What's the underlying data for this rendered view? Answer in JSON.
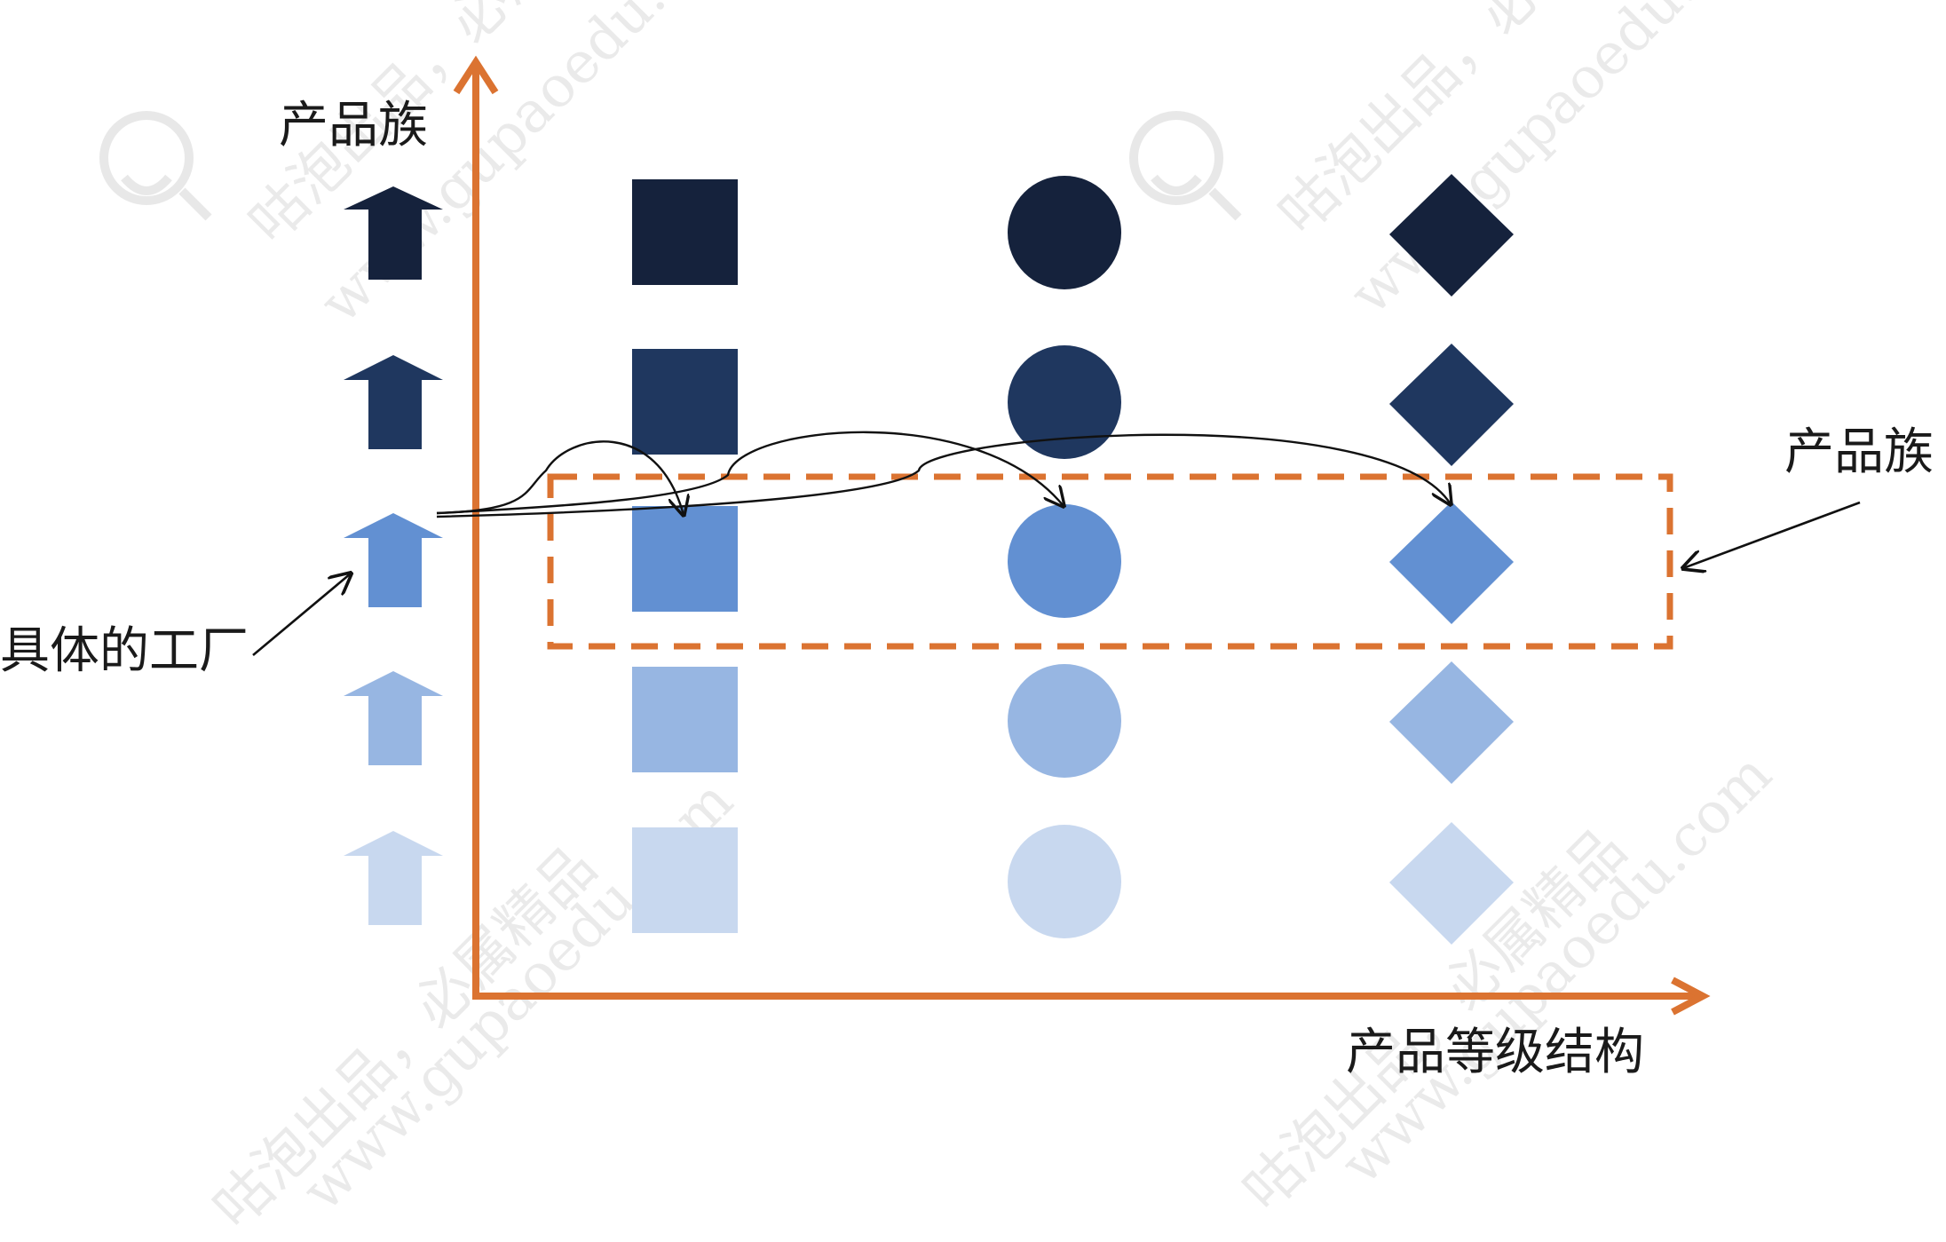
{
  "labels": {
    "y_axis_title": "产品族",
    "right_family_label": "产品族",
    "factory_label": "具体的工厂",
    "x_axis_title": "产品等级结构"
  },
  "colors": {
    "axis": "#db7331",
    "dashed_box": "#db7331",
    "shade_1": "#15223c",
    "shade_2": "#1f375f",
    "shade_3": "#6290d2",
    "shade_4": "#97b6e2",
    "shade_5": "#c8d8ef",
    "annotation_line": "#111111"
  },
  "grid": {
    "columns": [
      "square",
      "circle",
      "diamond"
    ],
    "rows": 5,
    "row_marker_icon": "up-arrow-icon"
  },
  "watermarks": {
    "line_1": "咕泡出品，必属精品",
    "line_2": "www.gupaoedu.com",
    "logo_icon": "bulb-logo-icon"
  }
}
